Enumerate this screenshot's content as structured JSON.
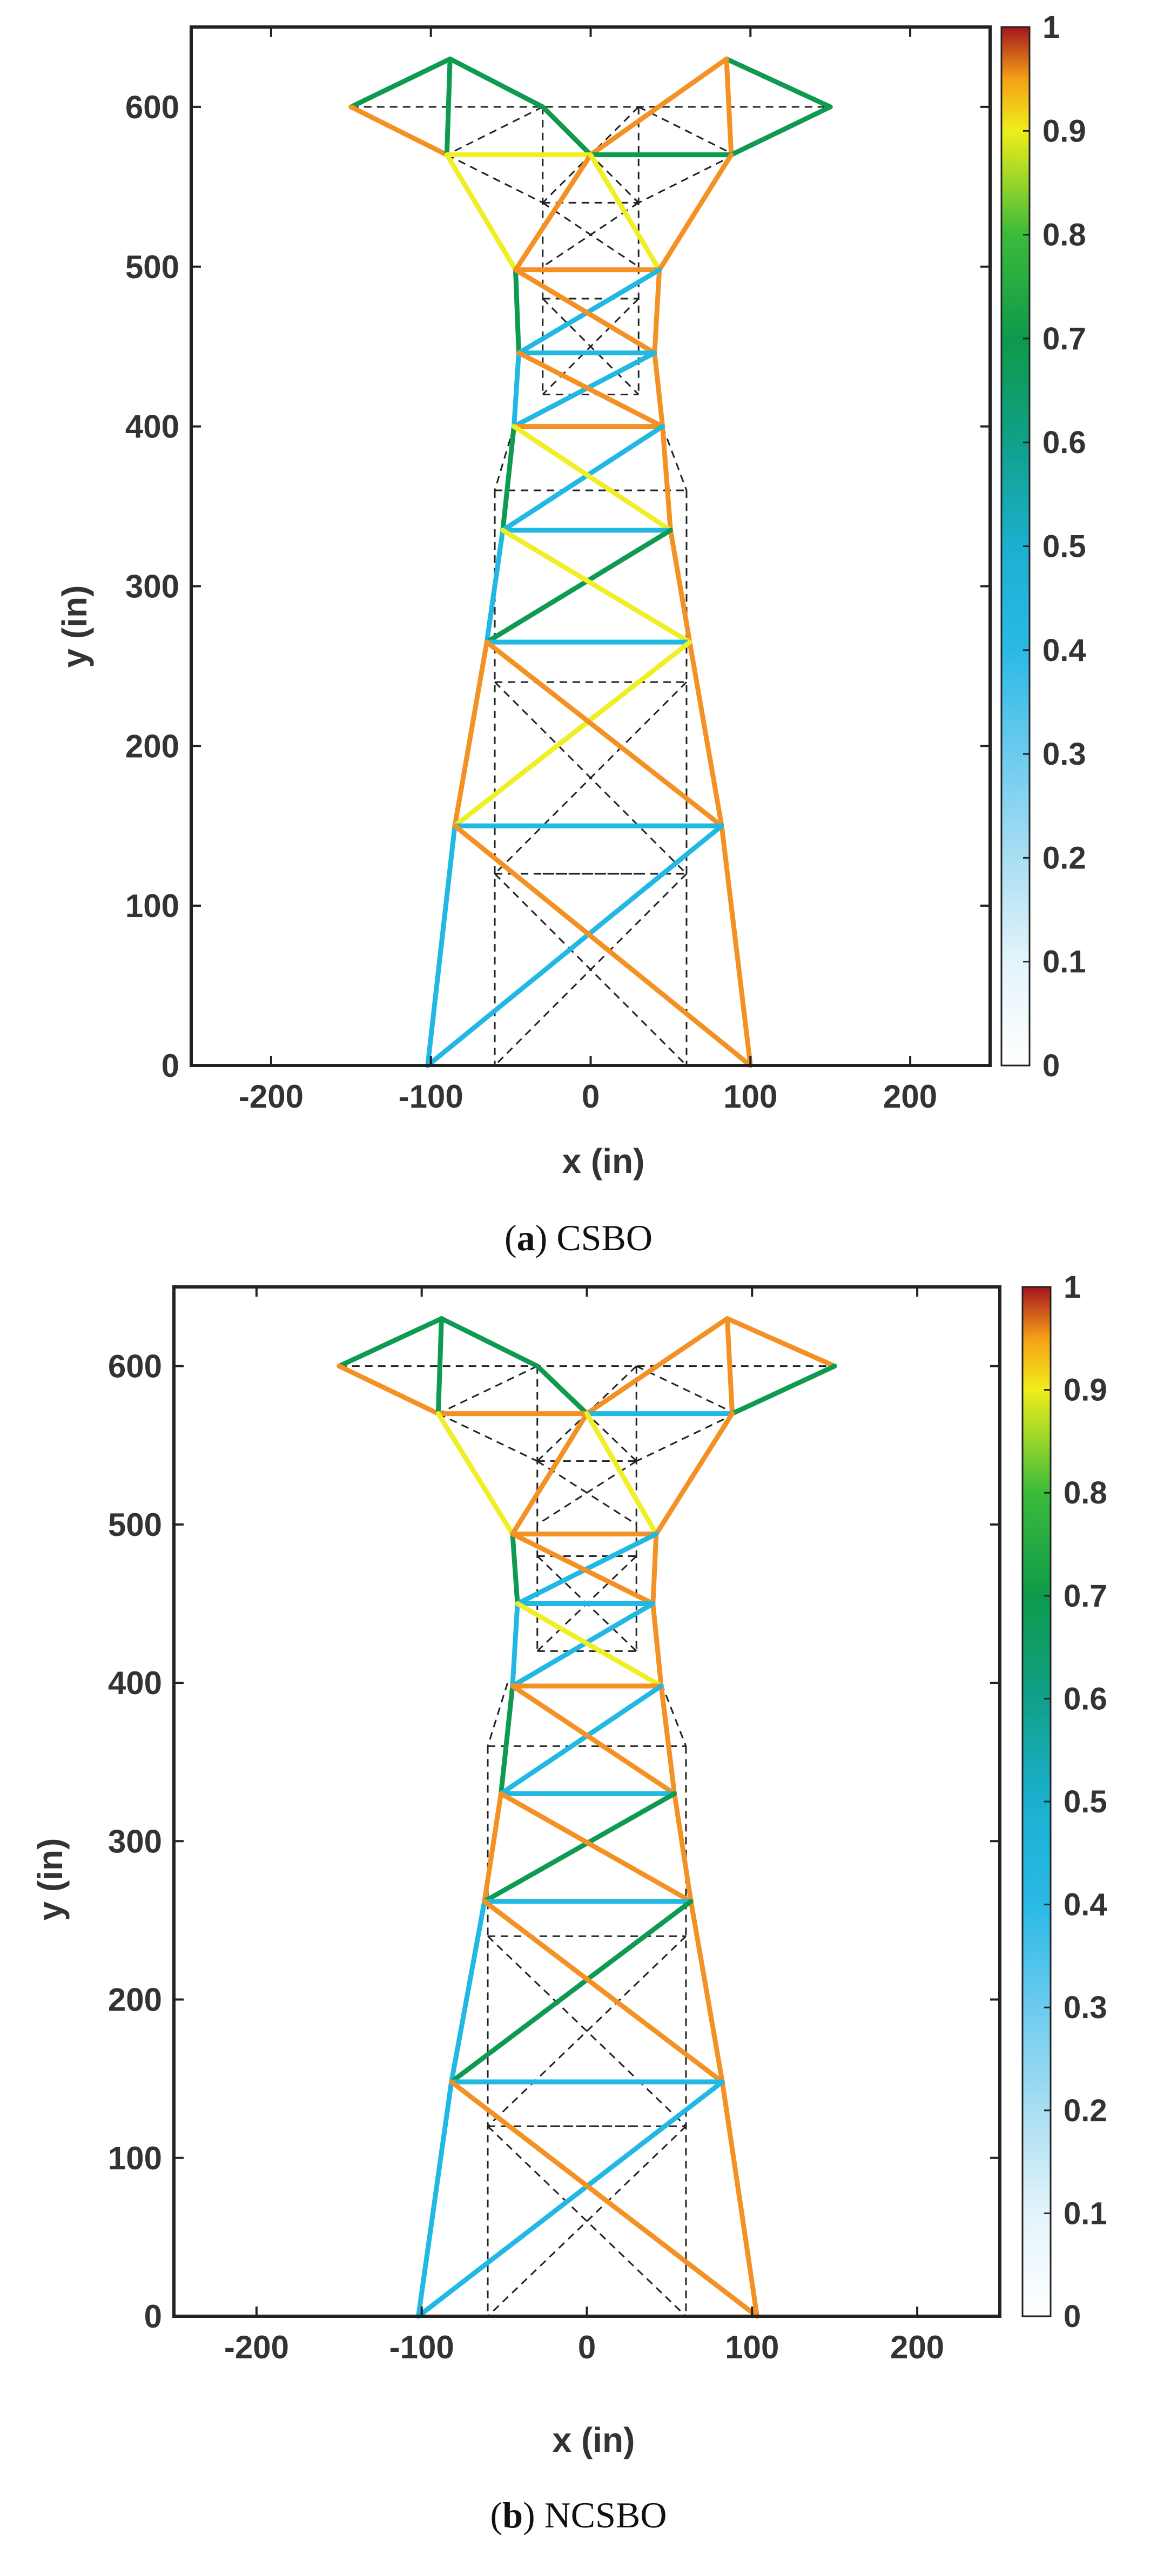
{
  "figure": {
    "colormap": {
      "stops": [
        {
          "v": 0.0,
          "c": "#ffffff"
        },
        {
          "v": 0.1,
          "c": "#e3f4fb"
        },
        {
          "v": 0.2,
          "c": "#a9def2"
        },
        {
          "v": 0.3,
          "c": "#6ccbee"
        },
        {
          "v": 0.4,
          "c": "#2ab9e6"
        },
        {
          "v": 0.5,
          "c": "#1bb0cf"
        },
        {
          "v": 0.6,
          "c": "#11a08a"
        },
        {
          "v": 0.7,
          "c": "#0e9a4a"
        },
        {
          "v": 0.8,
          "c": "#3bbb3b"
        },
        {
          "v": 0.9,
          "c": "#f0ee1a"
        },
        {
          "v": 0.95,
          "c": "#f5a016"
        },
        {
          "v": 1.0,
          "c": "#a4161f"
        }
      ],
      "ticks": [
        "0",
        "0.1",
        "0.2",
        "0.3",
        "0.4",
        "0.5",
        "0.6",
        "0.7",
        "0.8",
        "0.9",
        "1"
      ]
    },
    "member_colors": {
      "orange": "#f39124",
      "yellow": "#f0ee24",
      "green": "#0f9a52",
      "cyan": "#22b8e4",
      "dashed": "#222222"
    }
  },
  "chart_data": [
    {
      "type": "line",
      "caption_letter": "a",
      "caption_text": "CSBO",
      "xlabel": "x (in)",
      "ylabel": "y (in)",
      "xlim": [
        -250,
        250
      ],
      "ylim": [
        0,
        650
      ],
      "xticks": [
        "-200",
        "-100",
        "0",
        "100",
        "200"
      ],
      "yticks": [
        "0",
        "100",
        "200",
        "300",
        "400",
        "500",
        "600"
      ],
      "xtick_values": [
        -200,
        -100,
        0,
        100,
        200
      ],
      "ytick_values": [
        0,
        100,
        200,
        300,
        400,
        500,
        600
      ],
      "members": [
        {
          "x1": -150,
          "y1": 600,
          "x2": -88,
          "y2": 630,
          "c": "green"
        },
        {
          "x1": -88,
          "y1": 630,
          "x2": -30,
          "y2": 600,
          "c": "green"
        },
        {
          "x1": -30,
          "y1": 600,
          "x2": 0,
          "y2": 570,
          "c": "green"
        },
        {
          "x1": -150,
          "y1": 600,
          "x2": -90,
          "y2": 570,
          "c": "orange"
        },
        {
          "x1": -88,
          "y1": 630,
          "x2": -90,
          "y2": 570,
          "c": "green"
        },
        {
          "x1": -90,
          "y1": 570,
          "x2": 0,
          "y2": 570,
          "c": "yellow"
        },
        {
          "x1": 150,
          "y1": 600,
          "x2": 85,
          "y2": 630,
          "c": "green"
        },
        {
          "x1": 85,
          "y1": 630,
          "x2": 0,
          "y2": 570,
          "c": "orange"
        },
        {
          "x1": 85,
          "y1": 630,
          "x2": 88,
          "y2": 570,
          "c": "orange"
        },
        {
          "x1": 150,
          "y1": 600,
          "x2": 88,
          "y2": 570,
          "c": "green"
        },
        {
          "x1": 0,
          "y1": 570,
          "x2": 88,
          "y2": 570,
          "c": "green"
        },
        {
          "x1": -90,
          "y1": 570,
          "x2": -47,
          "y2": 498,
          "c": "yellow"
        },
        {
          "x1": 0,
          "y1": 570,
          "x2": -47,
          "y2": 498,
          "c": "orange"
        },
        {
          "x1": 0,
          "y1": 570,
          "x2": 43,
          "y2": 498,
          "c": "yellow"
        },
        {
          "x1": 88,
          "y1": 570,
          "x2": 43,
          "y2": 498,
          "c": "orange"
        },
        {
          "x1": -47,
          "y1": 498,
          "x2": 43,
          "y2": 498,
          "c": "orange"
        },
        {
          "x1": -47,
          "y1": 498,
          "x2": -45,
          "y2": 446,
          "c": "green"
        },
        {
          "x1": 43,
          "y1": 498,
          "x2": 40,
          "y2": 446,
          "c": "orange"
        },
        {
          "x1": 43,
          "y1": 498,
          "x2": -45,
          "y2": 446,
          "c": "cyan"
        },
        {
          "x1": -47,
          "y1": 498,
          "x2": 40,
          "y2": 446,
          "c": "orange"
        },
        {
          "x1": -45,
          "y1": 446,
          "x2": 40,
          "y2": 446,
          "c": "cyan"
        },
        {
          "x1": -45,
          "y1": 446,
          "x2": -48,
          "y2": 400,
          "c": "cyan"
        },
        {
          "x1": 40,
          "y1": 446,
          "x2": 45,
          "y2": 400,
          "c": "orange"
        },
        {
          "x1": 40,
          "y1": 446,
          "x2": -48,
          "y2": 400,
          "c": "cyan"
        },
        {
          "x1": -45,
          "y1": 446,
          "x2": 45,
          "y2": 400,
          "c": "orange"
        },
        {
          "x1": -48,
          "y1": 400,
          "x2": 45,
          "y2": 400,
          "c": "orange"
        },
        {
          "x1": -48,
          "y1": 400,
          "x2": -55,
          "y2": 335,
          "c": "green"
        },
        {
          "x1": 45,
          "y1": 400,
          "x2": 50,
          "y2": 335,
          "c": "orange"
        },
        {
          "x1": 45,
          "y1": 400,
          "x2": -55,
          "y2": 335,
          "c": "cyan"
        },
        {
          "x1": -48,
          "y1": 400,
          "x2": 50,
          "y2": 335,
          "c": "yellow"
        },
        {
          "x1": -55,
          "y1": 335,
          "x2": 50,
          "y2": 335,
          "c": "cyan"
        },
        {
          "x1": -55,
          "y1": 335,
          "x2": -65,
          "y2": 265,
          "c": "cyan"
        },
        {
          "x1": 50,
          "y1": 335,
          "x2": 62,
          "y2": 265,
          "c": "orange"
        },
        {
          "x1": 50,
          "y1": 335,
          "x2": -65,
          "y2": 265,
          "c": "green"
        },
        {
          "x1": -55,
          "y1": 335,
          "x2": 62,
          "y2": 265,
          "c": "yellow"
        },
        {
          "x1": -65,
          "y1": 265,
          "x2": 62,
          "y2": 265,
          "c": "cyan"
        },
        {
          "x1": -65,
          "y1": 265,
          "x2": -85,
          "y2": 150,
          "c": "orange"
        },
        {
          "x1": 62,
          "y1": 265,
          "x2": 82,
          "y2": 150,
          "c": "orange"
        },
        {
          "x1": 62,
          "y1": 265,
          "x2": -85,
          "y2": 150,
          "c": "yellow"
        },
        {
          "x1": -65,
          "y1": 265,
          "x2": 82,
          "y2": 150,
          "c": "orange"
        },
        {
          "x1": -85,
          "y1": 150,
          "x2": 82,
          "y2": 150,
          "c": "cyan"
        },
        {
          "x1": -85,
          "y1": 150,
          "x2": -102,
          "y2": 0,
          "c": "cyan"
        },
        {
          "x1": 82,
          "y1": 150,
          "x2": 100,
          "y2": 0,
          "c": "orange"
        },
        {
          "x1": 82,
          "y1": 150,
          "x2": -102,
          "y2": 0,
          "c": "cyan"
        },
        {
          "x1": -85,
          "y1": 150,
          "x2": 100,
          "y2": 0,
          "c": "orange"
        }
      ]
    },
    {
      "type": "line",
      "caption_letter": "b",
      "caption_text": "NCSBO",
      "xlabel": "x (in)",
      "ylabel": "y (in)",
      "xlim": [
        -250,
        250
      ],
      "ylim": [
        0,
        650
      ],
      "xticks": [
        "-200",
        "-100",
        "0",
        "100",
        "200"
      ],
      "yticks": [
        "0",
        "100",
        "200",
        "300",
        "400",
        "500",
        "600"
      ],
      "xtick_values": [
        -200,
        -100,
        0,
        100,
        200
      ],
      "ytick_values": [
        0,
        100,
        200,
        300,
        400,
        500,
        600
      ],
      "members": [
        {
          "x1": -150,
          "y1": 600,
          "x2": -88,
          "y2": 630,
          "c": "green"
        },
        {
          "x1": -88,
          "y1": 630,
          "x2": -30,
          "y2": 600,
          "c": "green"
        },
        {
          "x1": -30,
          "y1": 600,
          "x2": 0,
          "y2": 570,
          "c": "green"
        },
        {
          "x1": -150,
          "y1": 600,
          "x2": -90,
          "y2": 570,
          "c": "orange"
        },
        {
          "x1": -88,
          "y1": 630,
          "x2": -90,
          "y2": 570,
          "c": "green"
        },
        {
          "x1": -90,
          "y1": 570,
          "x2": 0,
          "y2": 570,
          "c": "orange"
        },
        {
          "x1": 150,
          "y1": 600,
          "x2": 85,
          "y2": 630,
          "c": "orange"
        },
        {
          "x1": 85,
          "y1": 630,
          "x2": 0,
          "y2": 570,
          "c": "orange"
        },
        {
          "x1": 85,
          "y1": 630,
          "x2": 88,
          "y2": 570,
          "c": "orange"
        },
        {
          "x1": 150,
          "y1": 600,
          "x2": 88,
          "y2": 570,
          "c": "green"
        },
        {
          "x1": 0,
          "y1": 570,
          "x2": 88,
          "y2": 570,
          "c": "cyan"
        },
        {
          "x1": -90,
          "y1": 570,
          "x2": -45,
          "y2": 494,
          "c": "yellow"
        },
        {
          "x1": 0,
          "y1": 570,
          "x2": -45,
          "y2": 494,
          "c": "orange"
        },
        {
          "x1": 0,
          "y1": 570,
          "x2": 42,
          "y2": 494,
          "c": "yellow"
        },
        {
          "x1": 88,
          "y1": 570,
          "x2": 42,
          "y2": 494,
          "c": "orange"
        },
        {
          "x1": -45,
          "y1": 494,
          "x2": 42,
          "y2": 494,
          "c": "orange"
        },
        {
          "x1": -45,
          "y1": 494,
          "x2": -42,
          "y2": 450,
          "c": "green"
        },
        {
          "x1": 42,
          "y1": 494,
          "x2": 40,
          "y2": 450,
          "c": "orange"
        },
        {
          "x1": 42,
          "y1": 494,
          "x2": -42,
          "y2": 450,
          "c": "cyan"
        },
        {
          "x1": -45,
          "y1": 494,
          "x2": 40,
          "y2": 450,
          "c": "orange"
        },
        {
          "x1": -42,
          "y1": 450,
          "x2": 40,
          "y2": 450,
          "c": "cyan"
        },
        {
          "x1": -42,
          "y1": 450,
          "x2": -45,
          "y2": 398,
          "c": "cyan"
        },
        {
          "x1": 40,
          "y1": 450,
          "x2": 45,
          "y2": 398,
          "c": "orange"
        },
        {
          "x1": 40,
          "y1": 450,
          "x2": -45,
          "y2": 398,
          "c": "cyan"
        },
        {
          "x1": -42,
          "y1": 450,
          "x2": 45,
          "y2": 398,
          "c": "yellow"
        },
        {
          "x1": -45,
          "y1": 398,
          "x2": 45,
          "y2": 398,
          "c": "orange"
        },
        {
          "x1": -45,
          "y1": 398,
          "x2": -52,
          "y2": 330,
          "c": "green"
        },
        {
          "x1": 45,
          "y1": 398,
          "x2": 53,
          "y2": 330,
          "c": "orange"
        },
        {
          "x1": 45,
          "y1": 398,
          "x2": -52,
          "y2": 330,
          "c": "cyan"
        },
        {
          "x1": -45,
          "y1": 398,
          "x2": 53,
          "y2": 330,
          "c": "orange"
        },
        {
          "x1": -52,
          "y1": 330,
          "x2": 53,
          "y2": 330,
          "c": "cyan"
        },
        {
          "x1": -52,
          "y1": 330,
          "x2": -62,
          "y2": 262,
          "c": "orange"
        },
        {
          "x1": 53,
          "y1": 330,
          "x2": 63,
          "y2": 262,
          "c": "orange"
        },
        {
          "x1": 53,
          "y1": 330,
          "x2": -62,
          "y2": 262,
          "c": "green"
        },
        {
          "x1": -52,
          "y1": 330,
          "x2": 63,
          "y2": 262,
          "c": "orange"
        },
        {
          "x1": -62,
          "y1": 262,
          "x2": 63,
          "y2": 262,
          "c": "cyan"
        },
        {
          "x1": -62,
          "y1": 262,
          "x2": -82,
          "y2": 148,
          "c": "cyan"
        },
        {
          "x1": 63,
          "y1": 262,
          "x2": 82,
          "y2": 148,
          "c": "orange"
        },
        {
          "x1": 63,
          "y1": 262,
          "x2": -82,
          "y2": 148,
          "c": "green"
        },
        {
          "x1": -62,
          "y1": 262,
          "x2": 82,
          "y2": 148,
          "c": "orange"
        },
        {
          "x1": -82,
          "y1": 148,
          "x2": 82,
          "y2": 148,
          "c": "cyan"
        },
        {
          "x1": -82,
          "y1": 148,
          "x2": -102,
          "y2": 0,
          "c": "cyan"
        },
        {
          "x1": 82,
          "y1": 148,
          "x2": 103,
          "y2": 0,
          "c": "orange"
        },
        {
          "x1": 82,
          "y1": 148,
          "x2": -102,
          "y2": 0,
          "c": "cyan"
        },
        {
          "x1": -82,
          "y1": 148,
          "x2": 103,
          "y2": 0,
          "c": "orange"
        }
      ],
      "dashed_members": "ground"
    }
  ],
  "dashed_structure": {
    "members": [
      {
        "x1": -150,
        "y1": 600,
        "x2": 150,
        "y2": 600
      },
      {
        "x1": -30,
        "y1": 600,
        "x2": -30,
        "y2": 500
      },
      {
        "x1": 30,
        "y1": 600,
        "x2": 30,
        "y2": 500
      },
      {
        "x1": -30,
        "y1": 600,
        "x2": -90,
        "y2": 570
      },
      {
        "x1": 30,
        "y1": 600,
        "x2": 90,
        "y2": 570
      },
      {
        "x1": -30,
        "y1": 600,
        "x2": 30,
        "y2": 540
      },
      {
        "x1": 30,
        "y1": 600,
        "x2": -30,
        "y2": 540
      },
      {
        "x1": -90,
        "y1": 570,
        "x2": -30,
        "y2": 540
      },
      {
        "x1": 90,
        "y1": 570,
        "x2": 30,
        "y2": 540
      },
      {
        "x1": -30,
        "y1": 540,
        "x2": 30,
        "y2": 540
      },
      {
        "x1": -30,
        "y1": 540,
        "x2": 30,
        "y2": 500
      },
      {
        "x1": 30,
        "y1": 540,
        "x2": -30,
        "y2": 500
      },
      {
        "x1": -30,
        "y1": 500,
        "x2": -30,
        "y2": 420
      },
      {
        "x1": 30,
        "y1": 500,
        "x2": 30,
        "y2": 420
      },
      {
        "x1": -30,
        "y1": 480,
        "x2": 30,
        "y2": 480
      },
      {
        "x1": -30,
        "y1": 420,
        "x2": 30,
        "y2": 420
      },
      {
        "x1": -30,
        "y1": 480,
        "x2": 30,
        "y2": 420
      },
      {
        "x1": 30,
        "y1": 480,
        "x2": -30,
        "y2": 420
      },
      {
        "x1": -60,
        "y1": 360,
        "x2": 60,
        "y2": 360
      },
      {
        "x1": -48,
        "y1": 400,
        "x2": -60,
        "y2": 360
      },
      {
        "x1": 45,
        "y1": 400,
        "x2": 60,
        "y2": 360
      },
      {
        "x1": -60,
        "y1": 360,
        "x2": -60,
        "y2": 0
      },
      {
        "x1": 60,
        "y1": 360,
        "x2": 60,
        "y2": 0
      },
      {
        "x1": -60,
        "y1": 240,
        "x2": 60,
        "y2": 240
      },
      {
        "x1": -60,
        "y1": 120,
        "x2": 60,
        "y2": 120
      },
      {
        "x1": -60,
        "y1": 240,
        "x2": 60,
        "y2": 120
      },
      {
        "x1": 60,
        "y1": 240,
        "x2": -60,
        "y2": 120
      },
      {
        "x1": -60,
        "y1": 120,
        "x2": 60,
        "y2": 0
      },
      {
        "x1": 60,
        "y1": 120,
        "x2": -60,
        "y2": 0
      },
      {
        "x1": -30,
        "y1": 120,
        "x2": 30,
        "y2": 120
      }
    ]
  }
}
